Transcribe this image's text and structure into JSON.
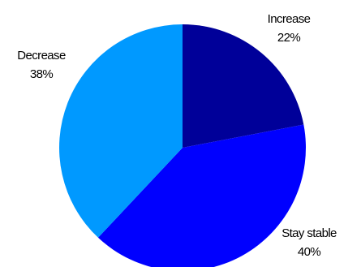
{
  "chart_data": {
    "type": "pie",
    "start": "12 o'clock",
    "direction": "clockwise",
    "legend": "none",
    "slices": [
      {
        "name": "Increase",
        "value": 22,
        "value_label": "22%",
        "color": "#000099"
      },
      {
        "name": "Stay stable",
        "value": 40,
        "value_label": "40%",
        "color": "#0000ff"
      },
      {
        "name": "Decrease",
        "value": 38,
        "value_label": "38%",
        "color": "#0099ff"
      }
    ]
  }
}
